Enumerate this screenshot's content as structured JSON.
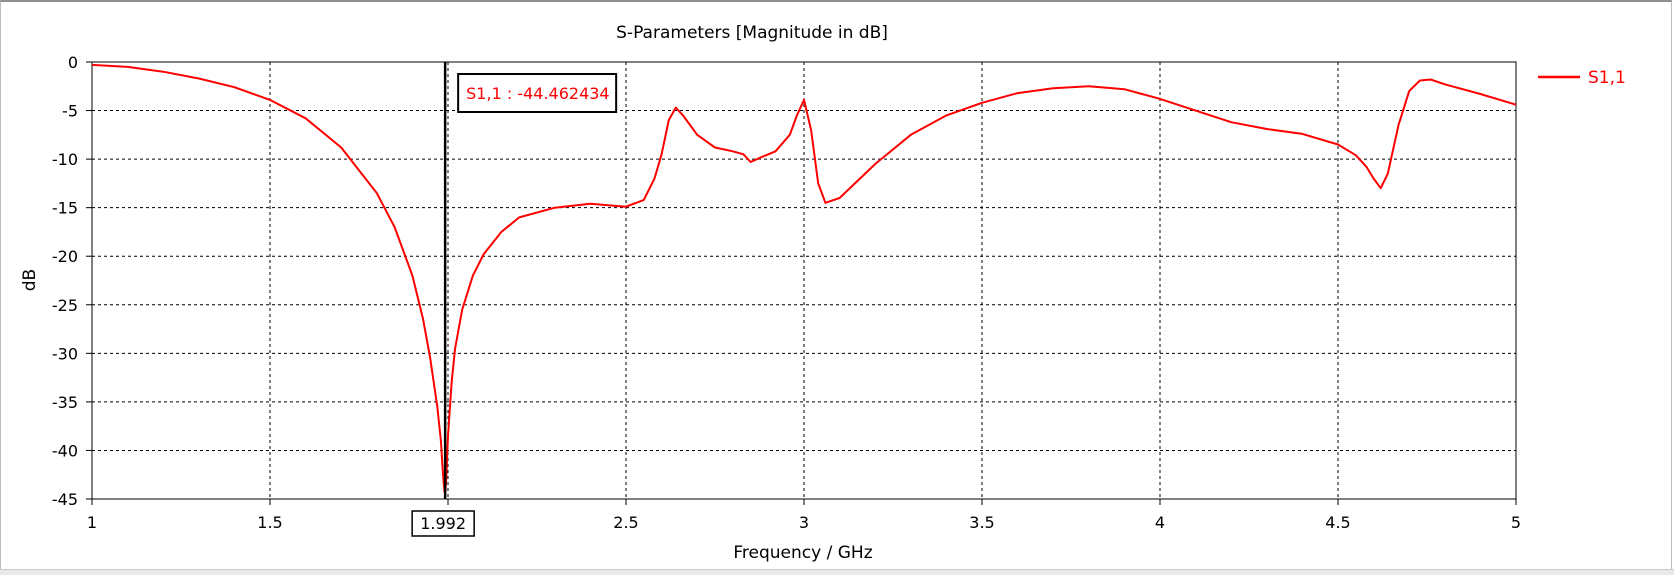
{
  "chart_data": {
    "type": "line",
    "title": "S-Parameters [Magnitude in dB]",
    "xlabel": "Frequency / GHz",
    "ylabel": "dB",
    "xlim": [
      1,
      5
    ],
    "ylim": [
      -45,
      0
    ],
    "xticks": [
      1,
      1.5,
      2,
      2.5,
      3,
      3.5,
      4,
      4.5,
      5
    ],
    "xtick_labels": [
      "1",
      "1.5",
      "2",
      "2.5",
      "3",
      "3.5",
      "4",
      "4.5",
      "5"
    ],
    "yticks": [
      0,
      -5,
      -10,
      -15,
      -20,
      -25,
      -30,
      -35,
      -40,
      -45
    ],
    "ytick_labels": [
      "0",
      "-5",
      "-10",
      "-15",
      "-20",
      "-25",
      "-30",
      "-35",
      "-40",
      "-45"
    ],
    "grid": true,
    "legend": "right",
    "series": [
      {
        "name": "S1,1",
        "color": "#ff0000",
        "x": [
          1.0,
          1.1,
          1.2,
          1.3,
          1.4,
          1.5,
          1.6,
          1.7,
          1.8,
          1.85,
          1.9,
          1.93,
          1.95,
          1.97,
          1.98,
          1.985,
          1.99,
          1.992,
          1.995,
          2.0,
          2.01,
          2.02,
          2.04,
          2.07,
          2.1,
          2.15,
          2.2,
          2.3,
          2.4,
          2.5,
          2.55,
          2.58,
          2.6,
          2.62,
          2.64,
          2.66,
          2.7,
          2.75,
          2.8,
          2.83,
          2.85,
          2.88,
          2.92,
          2.96,
          2.98,
          3.0,
          3.02,
          3.04,
          3.06,
          3.1,
          3.2,
          3.3,
          3.4,
          3.5,
          3.6,
          3.7,
          3.8,
          3.9,
          4.0,
          4.1,
          4.2,
          4.3,
          4.4,
          4.5,
          4.55,
          4.58,
          4.6,
          4.62,
          4.64,
          4.67,
          4.7,
          4.73,
          4.76,
          4.8,
          4.9,
          5.0
        ],
        "y": [
          -0.3,
          -0.5,
          -1.0,
          -1.7,
          -2.6,
          -3.9,
          -5.8,
          -8.8,
          -13.5,
          -17.0,
          -22.0,
          -26.5,
          -30.5,
          -35.5,
          -39.0,
          -42.0,
          -44.2,
          -44.462434,
          -43.0,
          -38.5,
          -33.0,
          -29.5,
          -25.5,
          -22.0,
          -19.8,
          -17.5,
          -16.0,
          -15.0,
          -14.6,
          -14.9,
          -14.2,
          -12.0,
          -9.5,
          -6.0,
          -4.7,
          -5.5,
          -7.5,
          -8.8,
          -9.2,
          -9.5,
          -10.3,
          -9.8,
          -9.2,
          -7.5,
          -5.5,
          -3.9,
          -7.0,
          -12.5,
          -14.5,
          -14.0,
          -10.5,
          -7.5,
          -5.5,
          -4.2,
          -3.2,
          -2.7,
          -2.5,
          -2.8,
          -3.8,
          -5.0,
          -6.2,
          -6.9,
          -7.4,
          -8.5,
          -9.6,
          -10.8,
          -12.0,
          -13.0,
          -11.5,
          -6.5,
          -3.0,
          -1.9,
          -1.8,
          -2.3,
          -3.3,
          -4.4
        ]
      }
    ],
    "marker": {
      "x": 1.992,
      "x_label": "1.992",
      "label": "S1,1 : -44.462434"
    }
  }
}
